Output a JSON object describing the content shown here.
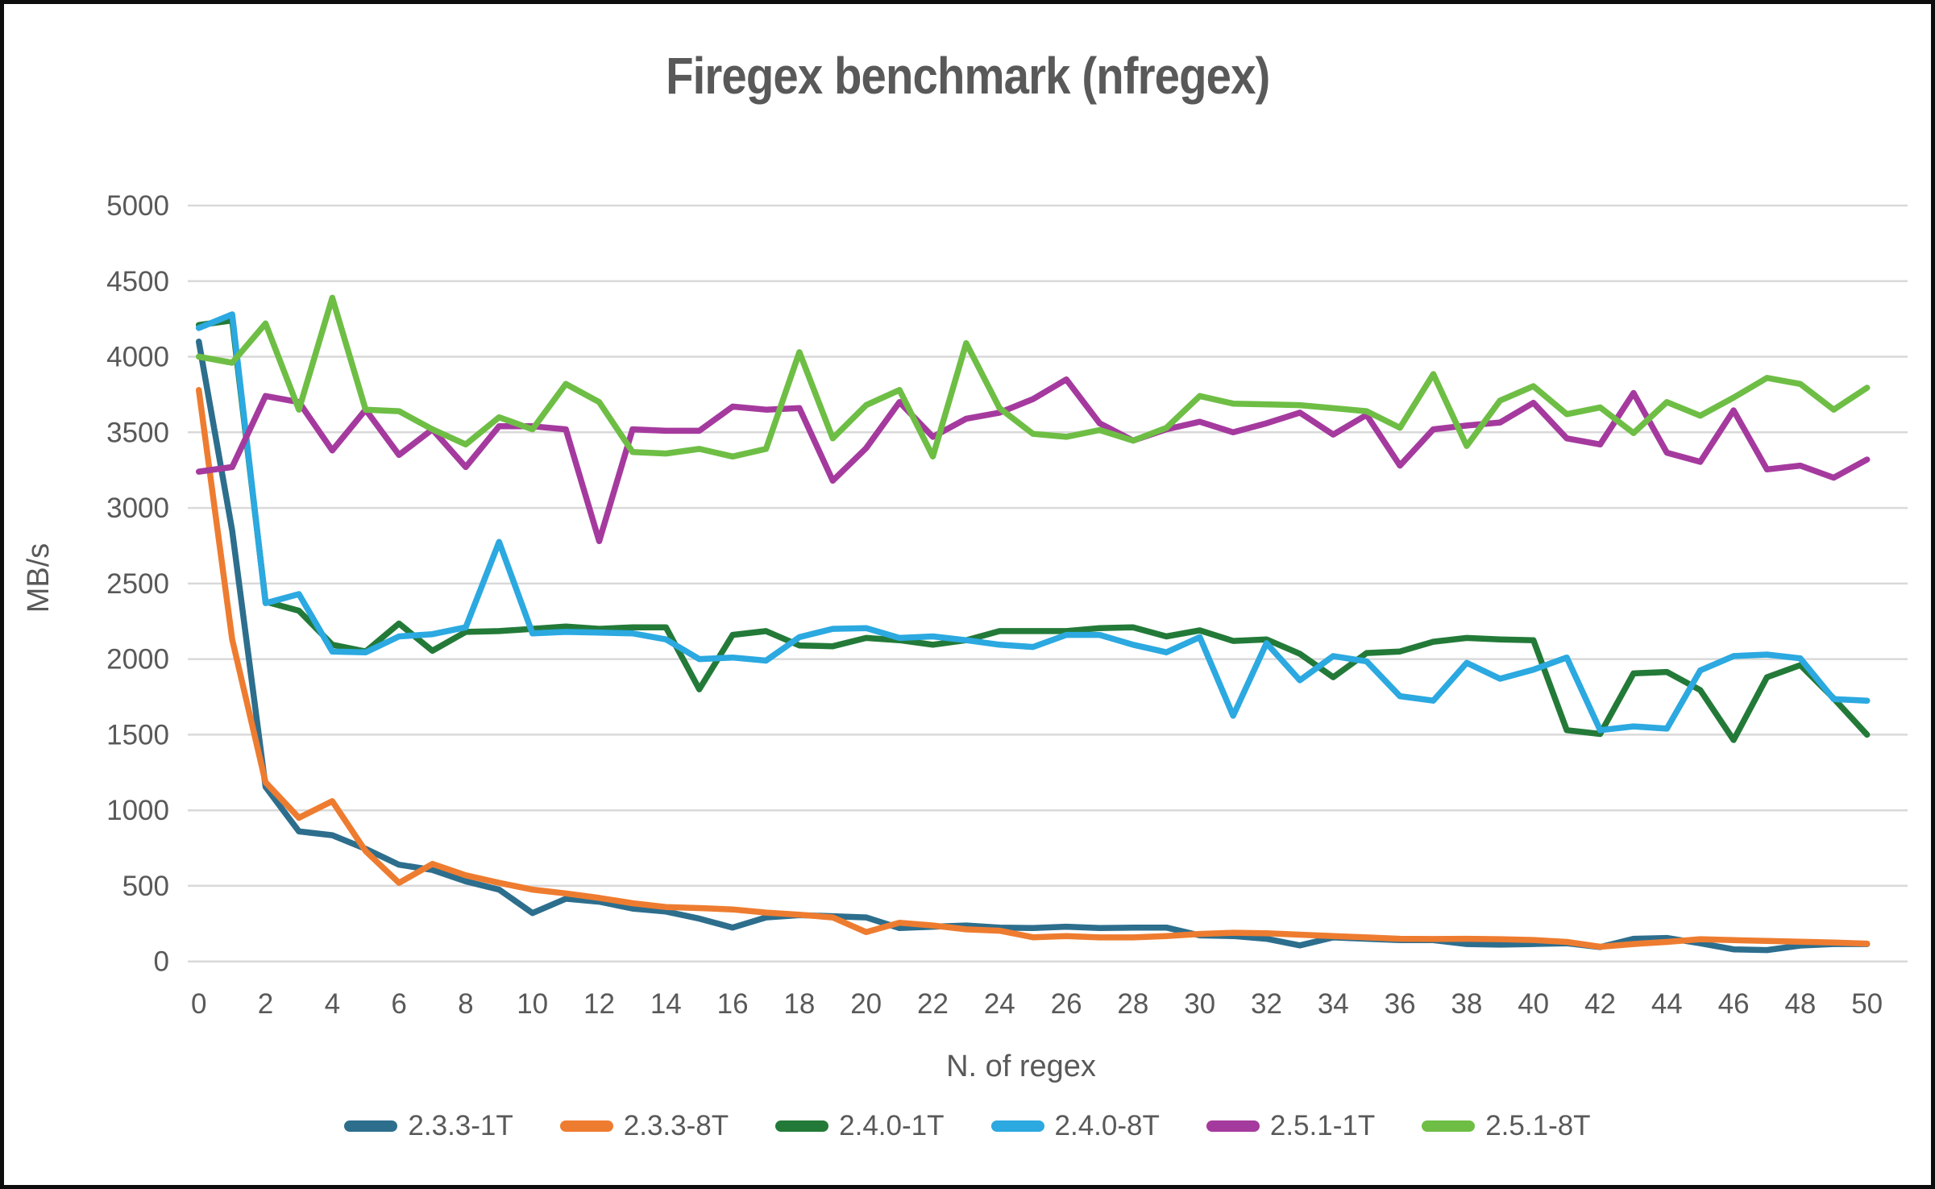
{
  "title": "Firegex benchmark (nfregex)",
  "colors": {
    "grid": "#d9d9d9",
    "axis_text": "#595959",
    "title_text": "#595959"
  },
  "chart_data": {
    "type": "line",
    "title": "Firegex benchmark (nfregex)",
    "xlabel": "N. of regex",
    "ylabel": "MB/s",
    "xlim": [
      0,
      50
    ],
    "x_tick_step": 2,
    "ylim": [
      0,
      5000
    ],
    "y_tick_step": 500,
    "grid": "horizontal",
    "legend_position": "bottom",
    "x": [
      0,
      1,
      2,
      3,
      4,
      5,
      6,
      7,
      8,
      9,
      10,
      11,
      12,
      13,
      14,
      15,
      16,
      17,
      18,
      19,
      20,
      21,
      22,
      23,
      24,
      25,
      26,
      27,
      28,
      29,
      30,
      31,
      32,
      33,
      34,
      35,
      36,
      37,
      38,
      39,
      40,
      41,
      42,
      43,
      44,
      45,
      46,
      47,
      48,
      49,
      50
    ],
    "series": [
      {
        "name": "2.3.3-1T",
        "color": "#2d6e8d",
        "values": [
          4100,
          2850,
          1155,
          860,
          835,
          745,
          640,
          605,
          530,
          475,
          320,
          415,
          395,
          350,
          330,
          283,
          224,
          291,
          306,
          299,
          291,
          221,
          230,
          238,
          224,
          221,
          230,
          221,
          224,
          224,
          172,
          168,
          150,
          106,
          159,
          150,
          141,
          141,
          115,
          111,
          115,
          120,
          95,
          150,
          155,
          120,
          80,
          75,
          105,
          115,
          115
        ]
      },
      {
        "name": "2.3.3-8T",
        "color": "#ee7c30",
        "values": [
          3780,
          2130,
          1185,
          950,
          1060,
          730,
          520,
          645,
          570,
          520,
          475,
          450,
          420,
          385,
          360,
          353,
          344,
          323,
          309,
          291,
          194,
          256,
          238,
          212,
          203,
          160,
          168,
          159,
          159,
          168,
          182,
          190,
          186,
          177,
          168,
          159,
          150,
          148,
          150,
          147,
          142,
          129,
          97,
          115,
          129,
          147,
          141,
          136,
          130,
          125,
          118
        ]
      },
      {
        "name": "2.4.0-1T",
        "color": "#237a38",
        "values": [
          4210,
          4240,
          2380,
          2320,
          2095,
          2050,
          2235,
          2055,
          2180,
          2185,
          2200,
          2215,
          2200,
          2210,
          2210,
          1800,
          2160,
          2185,
          2090,
          2085,
          2140,
          2125,
          2095,
          2125,
          2185,
          2185,
          2185,
          2205,
          2210,
          2150,
          2190,
          2120,
          2130,
          2035,
          1880,
          2040,
          2050,
          2115,
          2140,
          2130,
          2125,
          1530,
          1505,
          1905,
          1915,
          1795,
          1465,
          1880,
          1960,
          1740,
          1500
        ]
      },
      {
        "name": "2.4.0-8T",
        "color": "#2ba9e0",
        "values": [
          4190,
          4280,
          2370,
          2430,
          2050,
          2045,
          2150,
          2165,
          2210,
          2775,
          2170,
          2180,
          2175,
          2170,
          2130,
          2000,
          2010,
          1990,
          2145,
          2200,
          2205,
          2140,
          2150,
          2125,
          2095,
          2080,
          2160,
          2160,
          2095,
          2045,
          2145,
          1625,
          2105,
          1860,
          2020,
          1985,
          1755,
          1725,
          1975,
          1870,
          1930,
          2010,
          1530,
          1555,
          1540,
          1925,
          2020,
          2030,
          2005,
          1735,
          1725
        ]
      },
      {
        "name": "2.5.1-1T",
        "color": "#a53a9e",
        "values": [
          3240,
          3270,
          3740,
          3700,
          3380,
          3650,
          3350,
          3520,
          3270,
          3540,
          3540,
          3520,
          2780,
          3520,
          3510,
          3510,
          3670,
          3650,
          3660,
          3180,
          3395,
          3700,
          3470,
          3590,
          3630,
          3720,
          3850,
          3560,
          3445,
          3520,
          3570,
          3500,
          3560,
          3630,
          3485,
          3615,
          3280,
          3520,
          3545,
          3565,
          3695,
          3460,
          3420,
          3760,
          3365,
          3305,
          3645,
          3255,
          3280,
          3200,
          3320
        ]
      },
      {
        "name": "2.5.1-8T",
        "color": "#6ebe45",
        "values": [
          4000,
          3960,
          4220,
          3650,
          4390,
          3650,
          3640,
          3520,
          3420,
          3600,
          3520,
          3820,
          3700,
          3370,
          3360,
          3390,
          3340,
          3390,
          4030,
          3460,
          3680,
          3780,
          3340,
          4090,
          3660,
          3490,
          3470,
          3515,
          3445,
          3530,
          3740,
          3690,
          3685,
          3680,
          3660,
          3640,
          3530,
          3885,
          3410,
          3710,
          3805,
          3620,
          3665,
          3495,
          3700,
          3610,
          3730,
          3860,
          3820,
          3650,
          3795
        ]
      }
    ]
  }
}
